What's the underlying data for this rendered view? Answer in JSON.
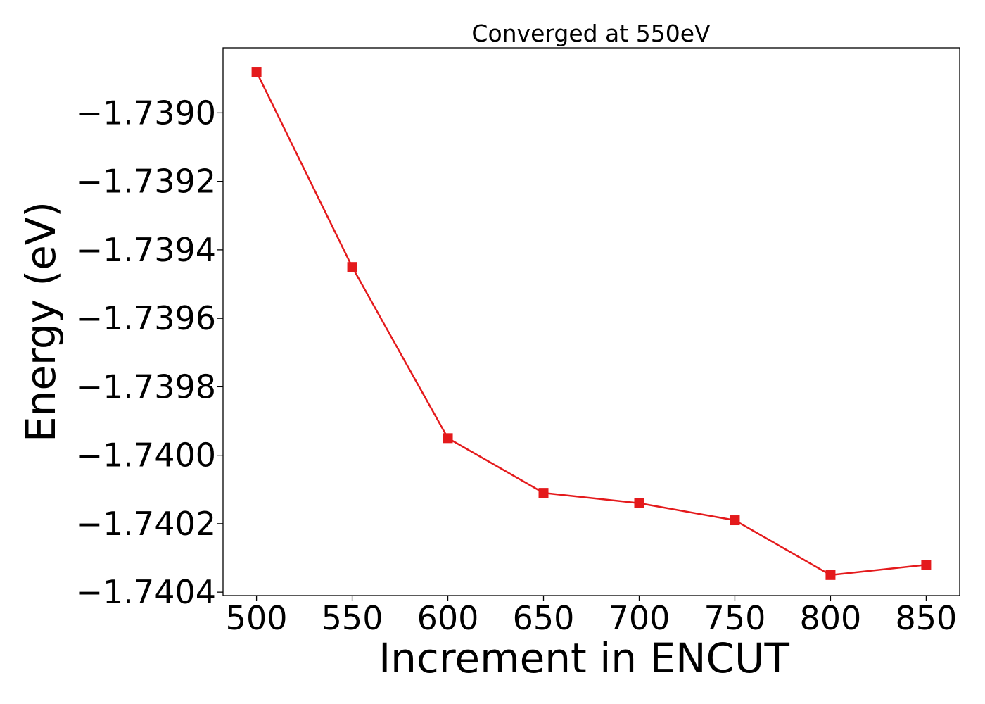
{
  "chart_data": {
    "type": "line",
    "title": "Converged at 550eV",
    "xlabel": "Increment in ENCUT",
    "ylabel": "Energy (eV)",
    "x": [
      500,
      550,
      600,
      650,
      700,
      750,
      800,
      850
    ],
    "series": [
      {
        "values": [
          -1.73888,
          -1.73945,
          -1.73995,
          -1.74011,
          -1.74014,
          -1.74019,
          -1.74035,
          -1.74032
        ]
      }
    ],
    "xticks": [
      500,
      550,
      600,
      650,
      700,
      750,
      800,
      850
    ],
    "xtick_labels": [
      "500",
      "550",
      "600",
      "650",
      "700",
      "750",
      "800",
      "850"
    ],
    "yticks": [
      -1.739,
      -1.7392,
      -1.7394,
      -1.7396,
      -1.7398,
      -1.74,
      -1.7402,
      -1.7404
    ],
    "ytick_labels": [
      "−1.7390",
      "−1.7392",
      "−1.7394",
      "−1.7396",
      "−1.7398",
      "−1.7400",
      "−1.7402",
      "−1.7404"
    ],
    "xlim": [
      482.5,
      867.5
    ],
    "ylim": [
      -1.74041,
      -1.73881
    ],
    "marker": "square",
    "color": "#e41a1c",
    "grid": false,
    "legend": "none"
  }
}
